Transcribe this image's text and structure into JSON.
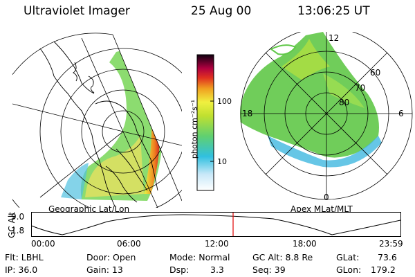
{
  "header": {
    "instrument": "Ultraviolet Imager",
    "date": "25 Aug 00",
    "time": "13:06:25 UT"
  },
  "geo_map": {
    "label": "Geographic Lat/Lon"
  },
  "mag_map": {
    "label": "Apex MLat/MLT",
    "mlt_labels": {
      "top": "12",
      "left": "18",
      "right": "6",
      "bottom": "0"
    },
    "lat_labels": [
      "60",
      "70",
      "80"
    ]
  },
  "colorbar": {
    "unit_label": "photon cm⁻²s⁻¹",
    "ticks": [
      "100",
      "10"
    ],
    "scale": "log"
  },
  "altitude_plot": {
    "axis_label": "GC Alt",
    "y_ticks": [
      "9.0",
      "1.8"
    ],
    "x_ticks": [
      "00:00",
      "06:00",
      "12:00",
      "18:00",
      "23:59"
    ],
    "current_time_fraction": 0.5459,
    "marker_color": "#e00000"
  },
  "status": {
    "flt": "Flt: LBHL",
    "ip": "IP: 36.0",
    "door": "Door: Open",
    "gain": "Gain: 13",
    "mode": "Mode: Normal",
    "dsp_label": "Dsp:",
    "dsp_value": "3.3",
    "gc_alt": "GC Alt: 8.8 Re",
    "seq": "Seq: 39",
    "glat_label": "GLat:",
    "glat_value": "73.6",
    "glon_label": "GLon:",
    "glon_value": "179.2"
  }
}
